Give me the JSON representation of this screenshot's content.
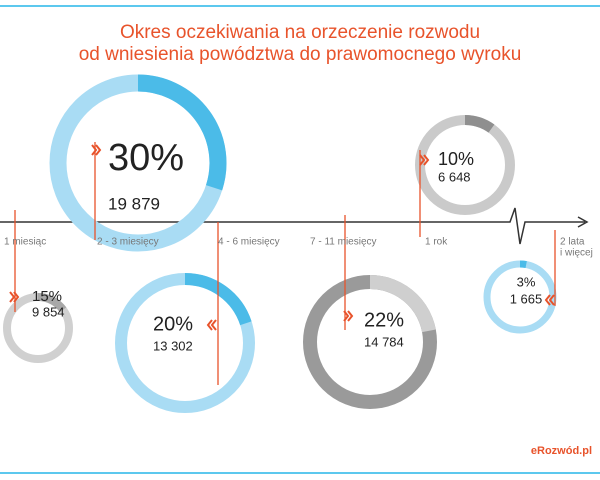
{
  "chart_data": {
    "type": "donut",
    "title": [
      "Okres oczekiwania na orzeczenie rozwodu",
      "od wniesienia powództwa do prawomocnego wyroku"
    ],
    "categories": [
      "1 miesiąc",
      "2 - 3 miesięcy",
      "4 - 6 miesięcy",
      "7 - 11 miesięcy",
      "1 rok",
      [
        "2 lata",
        "i więcej"
      ]
    ],
    "values": [
      15,
      30,
      20,
      22,
      10,
      3
    ],
    "value_labels": [
      "15%",
      "30%",
      "20%",
      "22%",
      "10%",
      "3%"
    ],
    "counts": [
      9854,
      19879,
      13302,
      14784,
      6648,
      1665
    ],
    "count_labels": [
      "9 854",
      "19 879",
      "13 302",
      "14 784",
      "6 648",
      "1 665"
    ],
    "track_colors": [
      "#d0d0d0",
      "#a9dcf4",
      "#a9dcf4",
      "#9a9a9a",
      "#cacaca",
      "#a9dcf4"
    ],
    "colors": [
      "#a8a8a8",
      "#4bbbe8",
      "#4bbbe8",
      "#cfcfcf",
      "#8f8f8f",
      "#4bbbe8"
    ],
    "source": "eRozwód.pl"
  }
}
